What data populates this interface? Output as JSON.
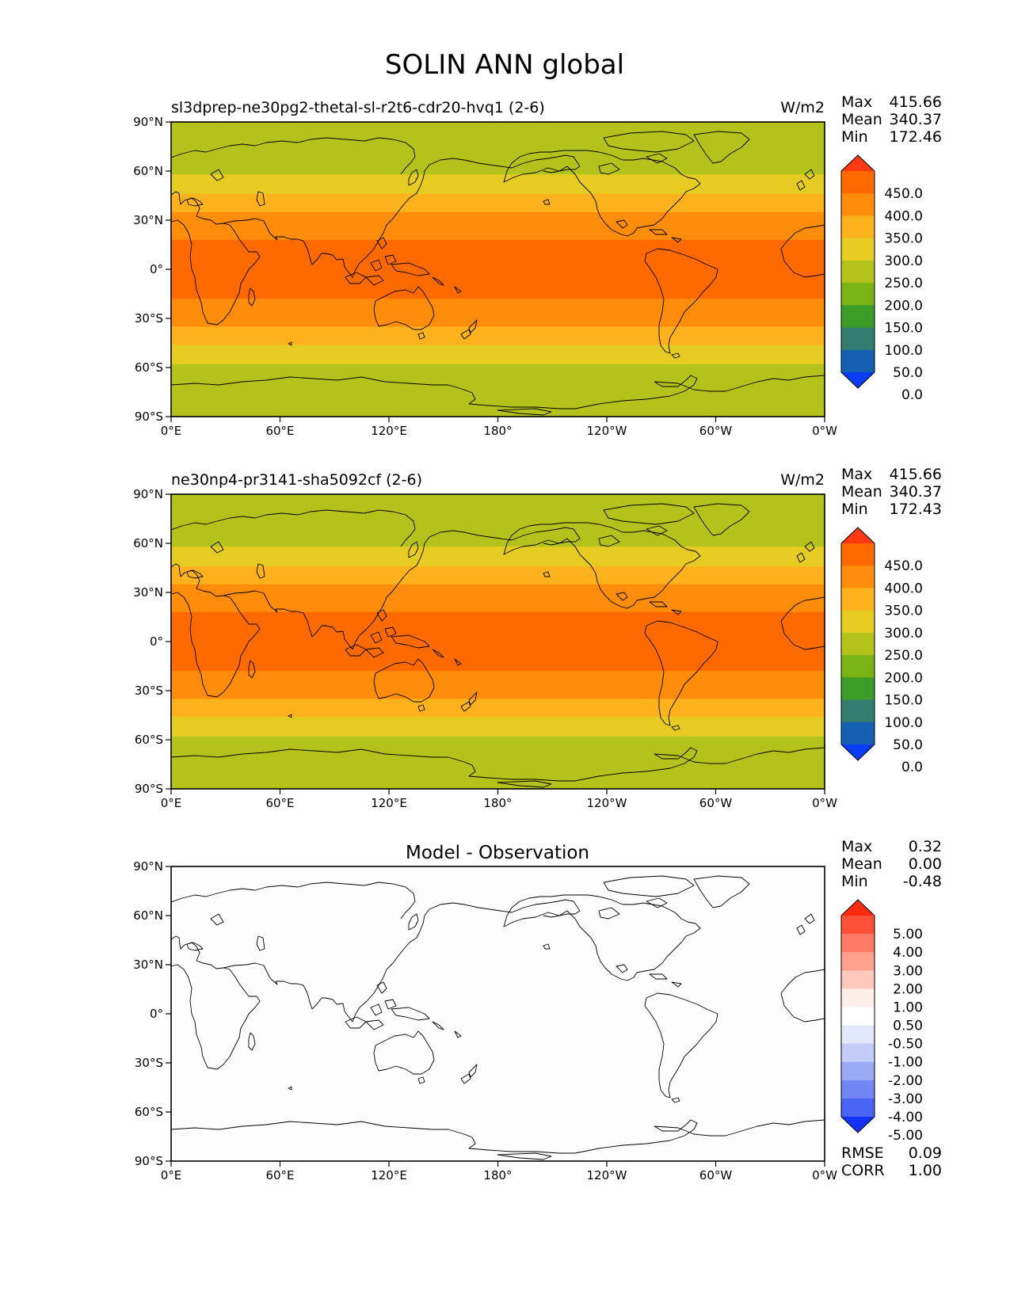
{
  "figure": {
    "title": "SOLIN ANN global"
  },
  "axes": {
    "lat_ticks": [
      "90°N",
      "60°N",
      "30°N",
      "0°",
      "30°S",
      "60°S",
      "90°S"
    ],
    "lon_ticks": [
      "0°E",
      "60°E",
      "120°E",
      "180°",
      "120°W",
      "60°W",
      "0°W"
    ]
  },
  "panels": [
    {
      "title": "sl3dprep-ne30pg2-thetal-sl-r2t6-cdr20-hvq1 (2-6)",
      "units": "W/m2",
      "stats": [
        [
          "Max",
          "415.66"
        ],
        [
          "Mean",
          "340.37"
        ],
        [
          "Min",
          "172.46"
        ]
      ]
    },
    {
      "title": "ne30np4-pr3141-sha5092cf (2-6)",
      "units": "W/m2",
      "stats": [
        [
          "Max",
          "415.66"
        ],
        [
          "Mean",
          "340.37"
        ],
        [
          "Min",
          "172.43"
        ]
      ]
    },
    {
      "title": "Model - Observation",
      "units": "",
      "stats": [
        [
          "Max",
          "0.32"
        ],
        [
          "Mean",
          "0.00"
        ],
        [
          "Min",
          "-0.48"
        ]
      ],
      "extra_stats": [
        [
          "RMSE",
          "0.09"
        ],
        [
          "CORR",
          "1.00"
        ]
      ]
    }
  ],
  "colorbars": {
    "field": {
      "labels": [
        "450.0",
        "400.0",
        "350.0",
        "300.0",
        "250.0",
        "200.0",
        "150.0",
        "100.0",
        "50.0",
        "0.0"
      ],
      "colors": [
        "#ff3a12",
        "#ff6a00",
        "#ff8c0a",
        "#fbb21c",
        "#e6cc22",
        "#b4c21c",
        "#7ab414",
        "#3c9c28",
        "#327d6e",
        "#1560b0",
        "#0a3cf5"
      ]
    },
    "diff": {
      "labels": [
        "5.00",
        "4.00",
        "3.00",
        "2.00",
        "1.00",
        "0.50",
        "-0.50",
        "-1.00",
        "-2.00",
        "-3.00",
        "-4.00",
        "-5.00"
      ],
      "colors": [
        "#ff2a10",
        "#ff5038",
        "#ff7a64",
        "#ffa08c",
        "#ffc8bc",
        "#ffeeea",
        "#ffffff",
        "#e4e8fc",
        "#c4ccf8",
        "#9aaaf5",
        "#7386f5",
        "#4a64f5",
        "#1432f5"
      ]
    }
  },
  "chart_data": [
    {
      "type": "heatmap",
      "title": "sl3dprep-ne30pg2-thetal-sl-r2t6-cdr20-hvq1 (2-6)",
      "units": "W/m2",
      "xlim": [
        0,
        360
      ],
      "ylim": [
        -90,
        90
      ],
      "lat_bands": [
        {
          "lat": [
            71,
            90
          ],
          "value": 200
        },
        {
          "lat": [
            58,
            71
          ],
          "value": 225
        },
        {
          "lat": [
            46,
            58
          ],
          "value": 275
        },
        {
          "lat": [
            35,
            46
          ],
          "value": 325
        },
        {
          "lat": [
            18,
            35
          ],
          "value": 375
        },
        {
          "lat": [
            -18,
            18
          ],
          "value": 425
        },
        {
          "lat": [
            -35,
            -18
          ],
          "value": 375
        },
        {
          "lat": [
            -46,
            -35
          ],
          "value": 325
        },
        {
          "lat": [
            -58,
            -46
          ],
          "value": 275
        },
        {
          "lat": [
            -71,
            -58
          ],
          "value": 225
        },
        {
          "lat": [
            -90,
            -71
          ],
          "value": 200
        }
      ],
      "stats": {
        "max": 415.66,
        "mean": 340.37,
        "min": 172.46
      },
      "colorbar_levels": [
        0,
        50,
        100,
        150,
        200,
        250,
        300,
        350,
        400,
        450
      ]
    },
    {
      "type": "heatmap",
      "title": "ne30np4-pr3141-sha5092cf (2-6)",
      "units": "W/m2",
      "xlim": [
        0,
        360
      ],
      "ylim": [
        -90,
        90
      ],
      "lat_bands": [
        {
          "lat": [
            71,
            90
          ],
          "value": 200
        },
        {
          "lat": [
            58,
            71
          ],
          "value": 225
        },
        {
          "lat": [
            46,
            58
          ],
          "value": 275
        },
        {
          "lat": [
            35,
            46
          ],
          "value": 325
        },
        {
          "lat": [
            18,
            35
          ],
          "value": 375
        },
        {
          "lat": [
            -18,
            18
          ],
          "value": 425
        },
        {
          "lat": [
            -35,
            -18
          ],
          "value": 375
        },
        {
          "lat": [
            -46,
            -35
          ],
          "value": 325
        },
        {
          "lat": [
            -58,
            -46
          ],
          "value": 275
        },
        {
          "lat": [
            -71,
            -58
          ],
          "value": 225
        },
        {
          "lat": [
            -90,
            -71
          ],
          "value": 200
        }
      ],
      "stats": {
        "max": 415.66,
        "mean": 340.37,
        "min": 172.43
      },
      "colorbar_levels": [
        0,
        50,
        100,
        150,
        200,
        250,
        300,
        350,
        400,
        450
      ]
    },
    {
      "type": "heatmap",
      "title": "Model - Observation",
      "units": "",
      "xlim": [
        0,
        360
      ],
      "ylim": [
        -90,
        90
      ],
      "lat_bands": [
        {
          "lat": [
            -90,
            90
          ],
          "value": 0
        }
      ],
      "stats": {
        "max": 0.32,
        "mean": 0.0,
        "min": -0.48,
        "rmse": 0.09,
        "corr": 1.0
      },
      "colorbar_levels": [
        -5,
        -4,
        -3,
        -2,
        -1,
        -0.5,
        0.5,
        1,
        2,
        3,
        4,
        5
      ]
    }
  ]
}
